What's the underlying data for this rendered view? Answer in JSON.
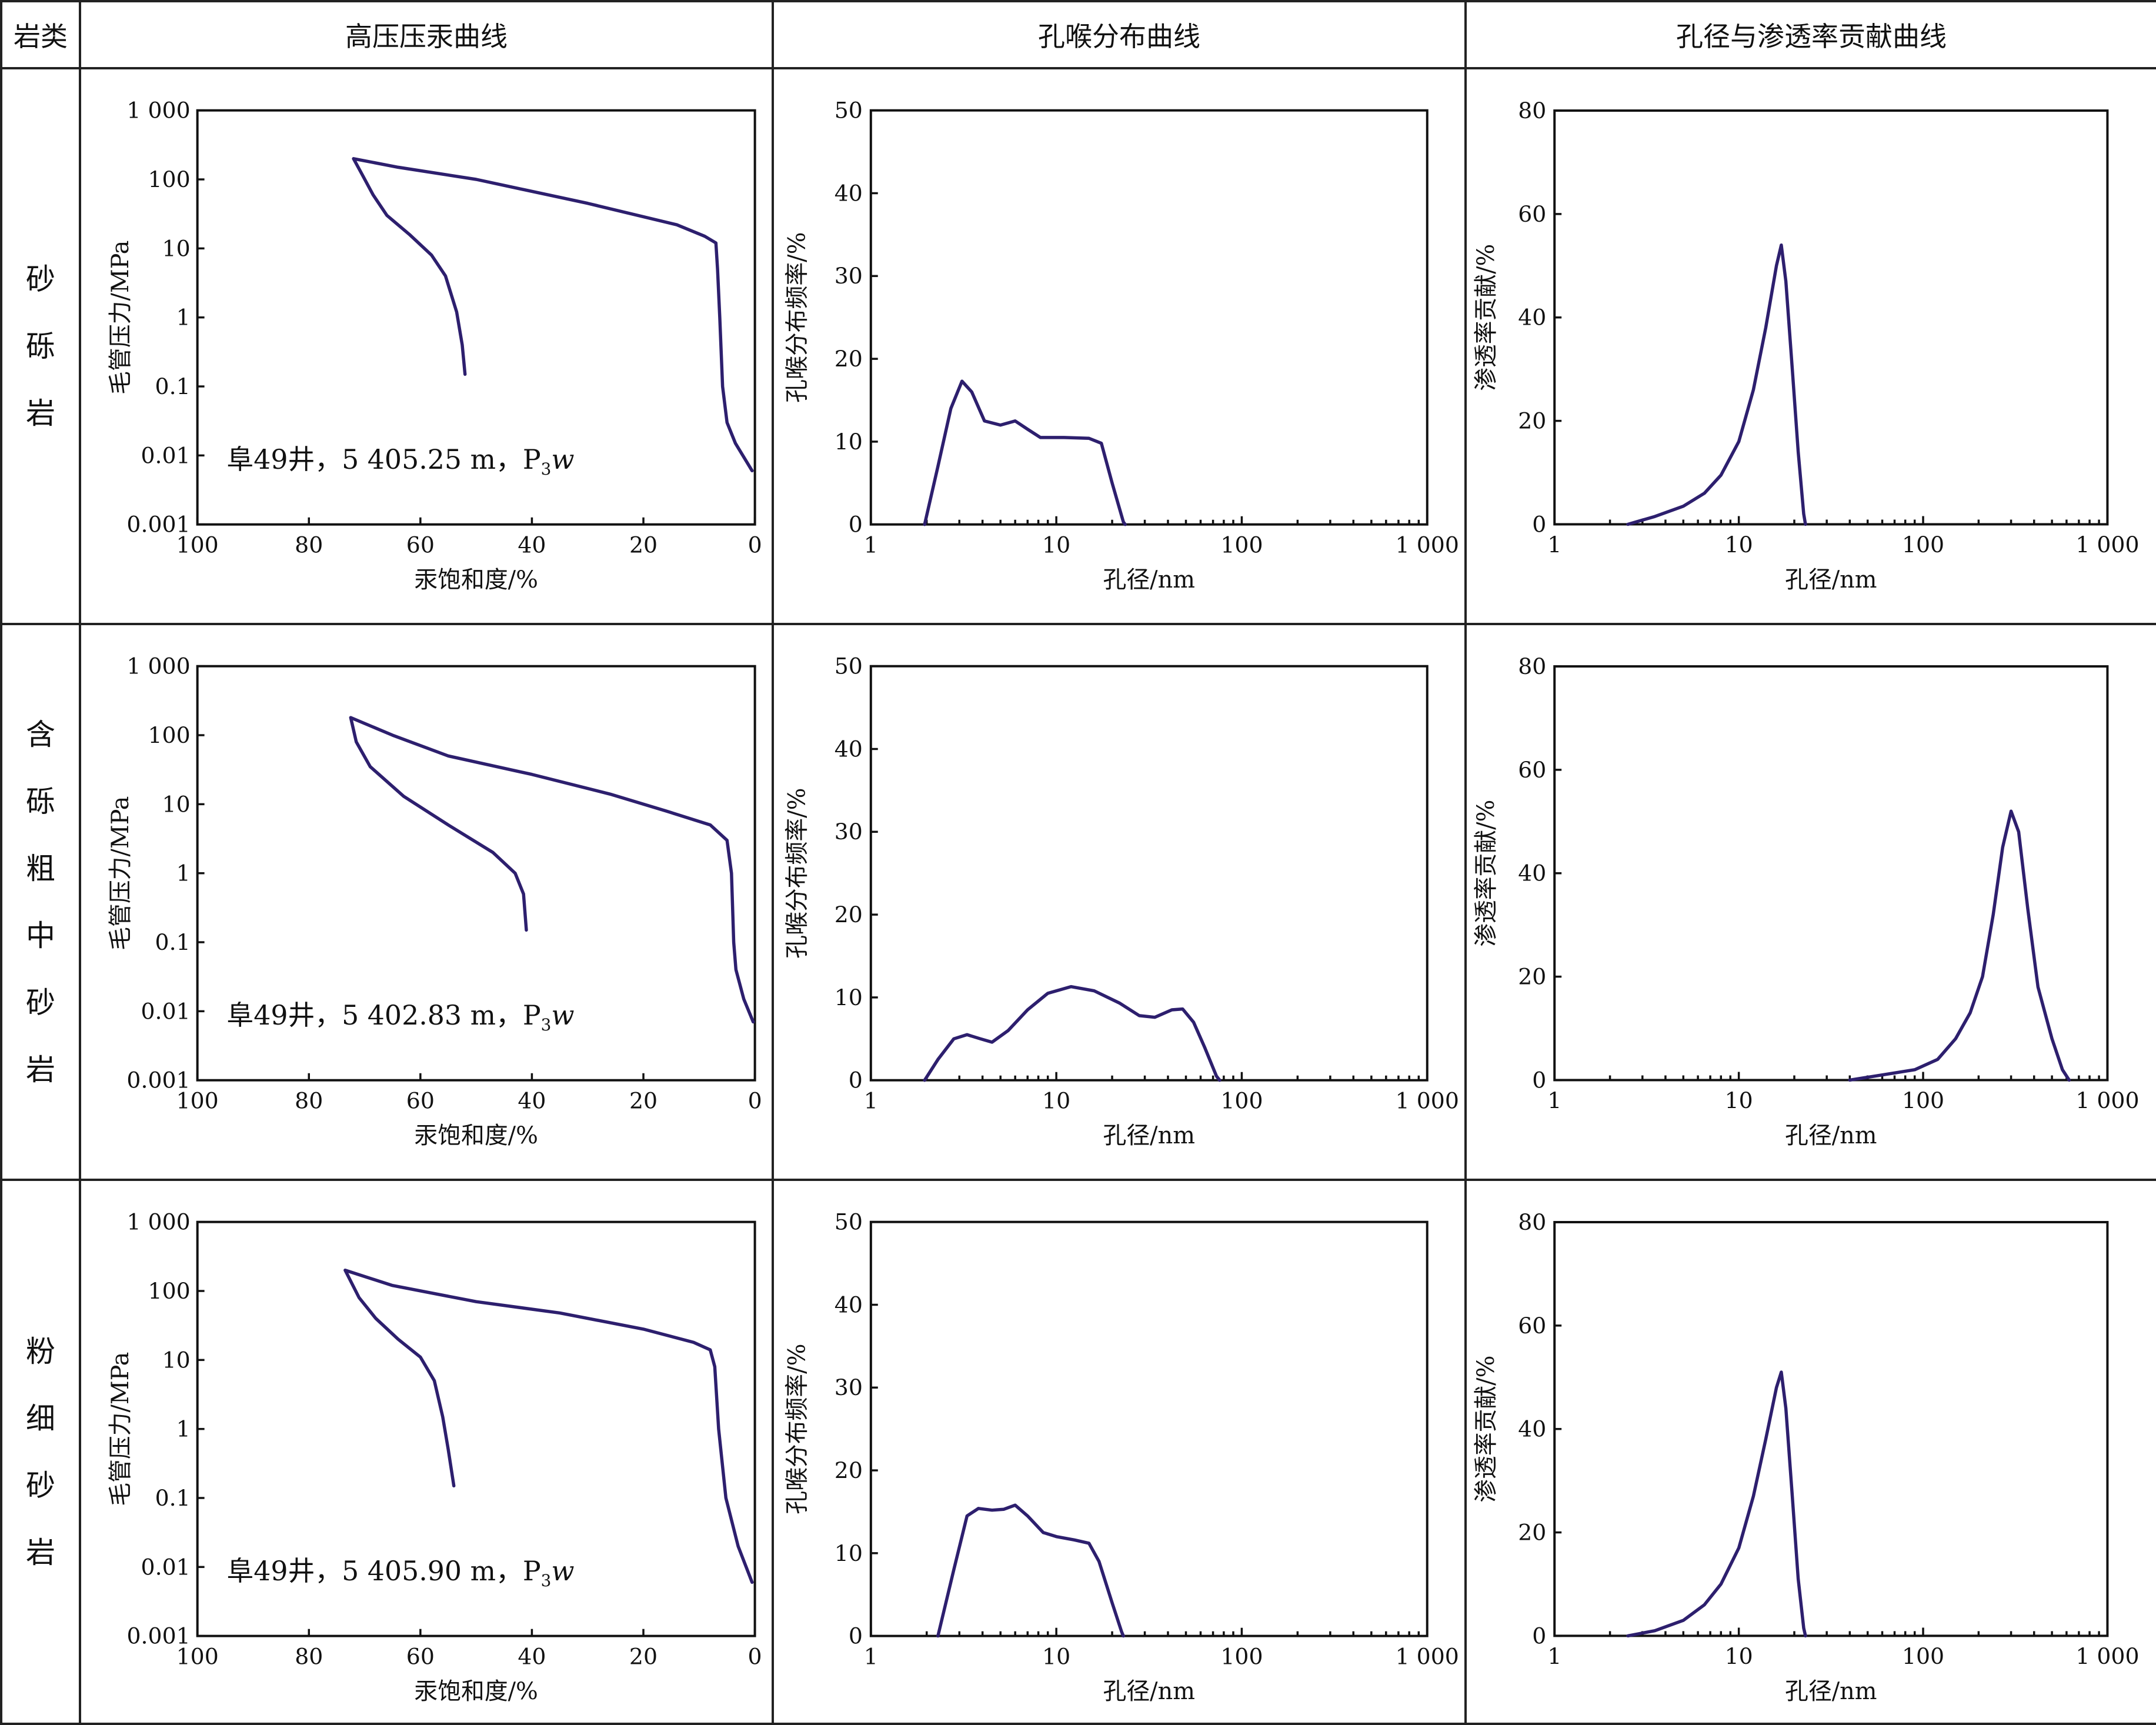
{
  "header": {
    "rock_type": "岩类",
    "col1": "高压压汞曲线",
    "col2": "孔喉分布曲线",
    "col3": "孔径与渗透率贡献曲线"
  },
  "rows": [
    {
      "rock": [
        "砂",
        "砾",
        "岩"
      ],
      "annotation": "阜49井，5 405.25 m，P",
      "formation_sub": "3",
      "formation_letter": "w"
    },
    {
      "rock": [
        "含",
        "砾",
        "粗",
        "中",
        "砂",
        "岩"
      ],
      "annotation": "阜49井，5 402.83 m，P",
      "formation_sub": "3",
      "formation_letter": "w"
    },
    {
      "rock": [
        "粉",
        "细",
        "砂",
        "岩"
      ],
      "annotation": "阜49井，5 405.90 m，P",
      "formation_sub": "3",
      "formation_letter": "w"
    }
  ],
  "chart_data": [
    {
      "type": "line",
      "row": 1,
      "xlabel": "汞饱和度/%",
      "ylabel": "毛管压力/MPa",
      "xscale": "linear",
      "yscale": "log",
      "xlim": [
        100,
        0
      ],
      "ylim": [
        0.001,
        1000
      ],
      "xticks": [
        "100",
        "80",
        "60",
        "40",
        "20",
        "0"
      ],
      "yticks": [
        "1 000",
        "100",
        "10",
        "1",
        "0.1",
        "0.01",
        "0.001"
      ],
      "series": [
        {
          "points": [
            [
              52,
              0.15
            ],
            [
              52.5,
              0.4
            ],
            [
              53.5,
              1.2
            ],
            [
              55.5,
              4
            ],
            [
              58,
              8
            ],
            [
              62,
              16
            ],
            [
              66,
              30
            ],
            [
              68.5,
              60
            ],
            [
              70.5,
              120
            ],
            [
              72,
              200
            ],
            [
              64,
              150
            ],
            [
              50,
              100
            ],
            [
              30,
              45
            ],
            [
              14,
              22
            ],
            [
              9,
              15
            ],
            [
              7,
              12
            ],
            [
              6.7,
              5
            ],
            [
              6.3,
              1
            ],
            [
              5.8,
              0.1
            ],
            [
              5,
              0.03
            ],
            [
              3.5,
              0.015
            ],
            [
              0.5,
              0.006
            ]
          ]
        }
      ]
    },
    {
      "type": "line",
      "row": 1,
      "xlabel": "孔径/nm",
      "ylabel": "孔喉分布频率/%",
      "xscale": "log",
      "yscale": "linear",
      "xlim": [
        1,
        1000
      ],
      "ylim": [
        0,
        50
      ],
      "xticks": [
        "1",
        "10",
        "100",
        "1 000"
      ],
      "yticks": [
        "0",
        "10",
        "20",
        "30",
        "40",
        "50"
      ],
      "series": [
        {
          "points": [
            [
              1.95,
              0
            ],
            [
              2.3,
              7
            ],
            [
              2.7,
              14
            ],
            [
              3.1,
              17.3
            ],
            [
              3.5,
              16
            ],
            [
              4.1,
              12.5
            ],
            [
              5,
              12
            ],
            [
              6,
              12.5
            ],
            [
              7,
              11.5
            ],
            [
              8.2,
              10.5
            ],
            [
              11,
              10.5
            ],
            [
              15,
              10.4
            ],
            [
              17.5,
              9.8
            ],
            [
              20,
              5
            ],
            [
              23,
              0.3
            ],
            [
              23.5,
              0
            ]
          ]
        }
      ]
    },
    {
      "type": "line",
      "row": 1,
      "xlabel": "孔径/nm",
      "ylabel": "渗透率贡献/%",
      "xscale": "log",
      "yscale": "linear",
      "xlim": [
        1,
        1000
      ],
      "ylim": [
        0,
        80
      ],
      "xticks": [
        "1",
        "10",
        "100",
        "1 000"
      ],
      "yticks": [
        "0",
        "20",
        "40",
        "60",
        "80"
      ],
      "series": [
        {
          "points": [
            [
              2.5,
              0
            ],
            [
              3.5,
              1.5
            ],
            [
              5,
              3.5
            ],
            [
              6.5,
              6
            ],
            [
              8,
              9.5
            ],
            [
              10,
              16
            ],
            [
              12,
              26
            ],
            [
              14,
              38
            ],
            [
              16,
              50
            ],
            [
              17,
              54
            ],
            [
              18,
              47
            ],
            [
              19.5,
              30
            ],
            [
              21,
              14
            ],
            [
              22.5,
              2
            ],
            [
              23,
              0
            ]
          ]
        }
      ]
    },
    {
      "type": "line",
      "row": 2,
      "xlabel": "汞饱和度/%",
      "ylabel": "毛管压力/MPa",
      "xscale": "linear",
      "yscale": "log",
      "xlim": [
        100,
        0
      ],
      "ylim": [
        0.001,
        1000
      ],
      "xticks": [
        "100",
        "80",
        "60",
        "40",
        "20",
        "0"
      ],
      "yticks": [
        "1 000",
        "100",
        "10",
        "1",
        "0.1",
        "0.01",
        "0.001"
      ],
      "series": [
        {
          "points": [
            [
              41,
              0.15
            ],
            [
              41.5,
              0.5
            ],
            [
              43,
              1
            ],
            [
              47,
              2
            ],
            [
              55,
              5
            ],
            [
              63,
              13
            ],
            [
              69,
              35
            ],
            [
              71.5,
              80
            ],
            [
              72.5,
              180
            ],
            [
              65,
              100
            ],
            [
              55,
              50
            ],
            [
              40,
              27
            ],
            [
              26,
              14
            ],
            [
              16,
              8
            ],
            [
              8,
              5
            ],
            [
              5,
              3
            ],
            [
              4.2,
              1
            ],
            [
              3.8,
              0.1
            ],
            [
              3.4,
              0.04
            ],
            [
              2,
              0.015
            ],
            [
              0.3,
              0.007
            ]
          ]
        }
      ]
    },
    {
      "type": "line",
      "row": 2,
      "xlabel": "孔径/nm",
      "ylabel": "孔喉分布频率/%",
      "xscale": "log",
      "yscale": "linear",
      "xlim": [
        1,
        1000
      ],
      "ylim": [
        0,
        50
      ],
      "xticks": [
        "1",
        "10",
        "100",
        "1 000"
      ],
      "yticks": [
        "0",
        "10",
        "20",
        "30",
        "40",
        "50"
      ],
      "series": [
        {
          "points": [
            [
              1.95,
              0
            ],
            [
              2.3,
              2.5
            ],
            [
              2.8,
              5
            ],
            [
              3.3,
              5.5
            ],
            [
              3.9,
              5
            ],
            [
              4.5,
              4.6
            ],
            [
              5.5,
              6
            ],
            [
              7,
              8.5
            ],
            [
              9,
              10.5
            ],
            [
              12,
              11.3
            ],
            [
              16,
              10.8
            ],
            [
              22,
              9.3
            ],
            [
              28,
              7.8
            ],
            [
              34,
              7.6
            ],
            [
              42,
              8.5
            ],
            [
              48,
              8.6
            ],
            [
              55,
              7
            ],
            [
              63,
              4
            ],
            [
              73,
              0.5
            ],
            [
              76,
              0
            ]
          ]
        }
      ]
    },
    {
      "type": "line",
      "row": 2,
      "xlabel": "孔径/nm",
      "ylabel": "渗透率贡献/%",
      "xscale": "log",
      "yscale": "linear",
      "xlim": [
        1,
        1000
      ],
      "ylim": [
        0,
        80
      ],
      "xticks": [
        "1",
        "10",
        "100",
        "1 000"
      ],
      "yticks": [
        "0",
        "20",
        "40",
        "60",
        "80"
      ],
      "series": [
        {
          "points": [
            [
              40,
              0
            ],
            [
              60,
              1
            ],
            [
              90,
              2
            ],
            [
              120,
              4
            ],
            [
              150,
              8
            ],
            [
              180,
              13
            ],
            [
              210,
              20
            ],
            [
              240,
              32
            ],
            [
              270,
              45
            ],
            [
              300,
              52
            ],
            [
              330,
              48
            ],
            [
              370,
              33
            ],
            [
              420,
              18
            ],
            [
              500,
              8
            ],
            [
              570,
              2
            ],
            [
              620,
              0
            ]
          ]
        }
      ]
    },
    {
      "type": "line",
      "row": 3,
      "xlabel": "汞饱和度/%",
      "ylabel": "毛管压力/MPa",
      "xscale": "linear",
      "yscale": "log",
      "xlim": [
        100,
        0
      ],
      "ylim": [
        0.001,
        1000
      ],
      "xticks": [
        "100",
        "80",
        "60",
        "40",
        "20",
        "0"
      ],
      "yticks": [
        "1 000",
        "100",
        "10",
        "1",
        "0.1",
        "0.01",
        "0.001"
      ],
      "series": [
        {
          "points": [
            [
              54,
              0.15
            ],
            [
              55,
              0.5
            ],
            [
              56,
              1.5
            ],
            [
              57.5,
              5
            ],
            [
              60,
              11
            ],
            [
              64,
              20
            ],
            [
              68,
              40
            ],
            [
              71,
              80
            ],
            [
              73.5,
              200
            ],
            [
              65,
              120
            ],
            [
              50,
              70
            ],
            [
              35,
              48
            ],
            [
              20,
              28
            ],
            [
              11,
              18
            ],
            [
              8,
              14
            ],
            [
              7.2,
              8
            ],
            [
              6.5,
              1
            ],
            [
              5.2,
              0.1
            ],
            [
              3,
              0.02
            ],
            [
              0.5,
              0.006
            ]
          ]
        }
      ]
    },
    {
      "type": "line",
      "row": 3,
      "xlabel": "孔径/nm",
      "ylabel": "孔喉分布频率/%",
      "xscale": "log",
      "yscale": "linear",
      "xlim": [
        1,
        1000
      ],
      "ylim": [
        0,
        50
      ],
      "xticks": [
        "1",
        "10",
        "100",
        "1 000"
      ],
      "yticks": [
        "0",
        "10",
        "20",
        "30",
        "40",
        "50"
      ],
      "series": [
        {
          "points": [
            [
              2.3,
              0
            ],
            [
              2.8,
              8
            ],
            [
              3.3,
              14.5
            ],
            [
              3.8,
              15.4
            ],
            [
              4.5,
              15.2
            ],
            [
              5.2,
              15.3
            ],
            [
              6,
              15.8
            ],
            [
              7,
              14.5
            ],
            [
              8.5,
              12.5
            ],
            [
              10,
              12
            ],
            [
              12.5,
              11.6
            ],
            [
              15,
              11.2
            ],
            [
              17,
              9
            ],
            [
              20,
              4
            ],
            [
              22.5,
              0.5
            ],
            [
              23,
              0
            ]
          ]
        }
      ]
    },
    {
      "type": "line",
      "row": 3,
      "xlabel": "孔径/nm",
      "ylabel": "渗透率贡献/%",
      "xscale": "log",
      "yscale": "linear",
      "xlim": [
        1,
        1000
      ],
      "ylim": [
        0,
        80
      ],
      "xticks": [
        "1",
        "10",
        "100",
        "1 000"
      ],
      "yticks": [
        "0",
        "20",
        "40",
        "60",
        "80"
      ],
      "series": [
        {
          "points": [
            [
              2.5,
              0
            ],
            [
              3.5,
              1
            ],
            [
              5,
              3
            ],
            [
              6.5,
              6
            ],
            [
              8,
              10
            ],
            [
              10,
              17
            ],
            [
              12,
              27
            ],
            [
              14,
              38
            ],
            [
              16,
              48
            ],
            [
              17,
              51
            ],
            [
              18,
              44
            ],
            [
              19.5,
              27
            ],
            [
              21,
              11
            ],
            [
              22.5,
              1.5
            ],
            [
              23,
              0
            ]
          ]
        }
      ]
    }
  ]
}
